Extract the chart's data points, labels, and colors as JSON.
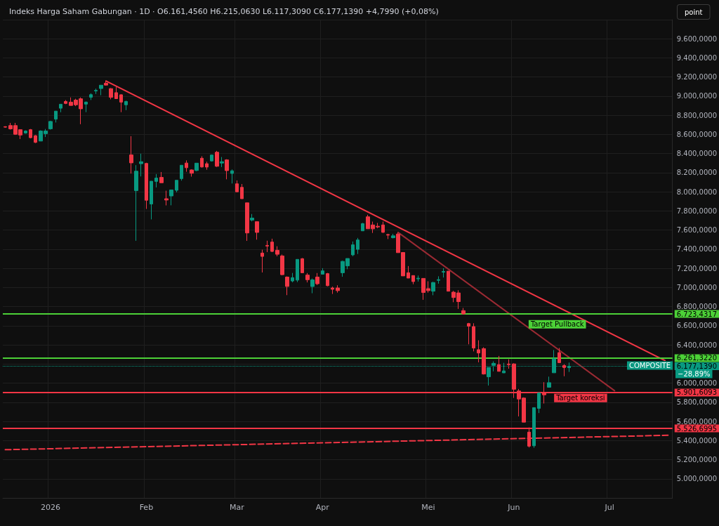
{
  "chart_data": {
    "type": "candlestick",
    "title": "Indeks Harga Saham Gabungan · 1D · O6.161,4560 H6.215,0630 L6.117,3090 C6.177,1390 +4,7990 (+0,08%)",
    "categories": [
      null,
      null,
      null,
      null,
      null,
      null,
      null,
      null,
      null,
      "2026",
      null,
      null,
      null,
      null,
      null,
      null,
      null,
      null,
      null,
      null,
      null,
      null,
      null,
      null,
      null,
      null,
      null,
      null,
      "Feb",
      null,
      null,
      null,
      null,
      null,
      null,
      null,
      null,
      null,
      null,
      null,
      null,
      null,
      null,
      null,
      null,
      null,
      "Mar",
      null,
      null,
      null,
      null,
      null,
      null,
      null,
      null,
      null,
      null,
      null,
      null,
      null,
      null,
      null,
      null,
      "Apr",
      null,
      null,
      null,
      null,
      null,
      null,
      null,
      null,
      null,
      null,
      null,
      null,
      null,
      null,
      null,
      null,
      null,
      null,
      null,
      null,
      "Mei",
      null,
      null,
      null,
      null,
      null,
      null,
      null,
      null,
      null,
      null,
      null,
      null,
      null,
      null,
      null,
      null,
      "Jun",
      null,
      null,
      null,
      null,
      null,
      null,
      null,
      null,
      null,
      null,
      null,
      null,
      null,
      null,
      null,
      null,
      null,
      null,
      "Jul",
      null,
      null,
      null,
      null,
      null,
      null,
      null,
      null,
      null,
      null,
      null,
      null
    ],
    "ohlc": [
      [
        8681,
        8686,
        8671,
        8676
      ],
      [
        8693,
        8721,
        8651,
        8658
      ],
      [
        8693,
        8721,
        8595,
        8602
      ],
      [
        8650,
        8650,
        8552,
        8594
      ],
      [
        8615,
        8643,
        8608,
        8636
      ],
      [
        8650,
        8657,
        8559,
        8566
      ],
      [
        8587,
        8594,
        8510,
        8517
      ],
      [
        8531,
        8643,
        8531,
        8636
      ],
      [
        8608,
        8657,
        8573,
        8636
      ],
      [
        8659,
        8743,
        8650,
        8736
      ],
      [
        8760,
        8844,
        8725,
        8844
      ],
      [
        8874,
        8916,
        8832,
        8916
      ],
      [
        8945,
        8959,
        8917,
        8924
      ],
      [
        8938,
        8987,
        8903,
        8903
      ],
      [
        8959,
        8973,
        8896,
        8910
      ],
      [
        8973,
        8987,
        8707,
        8868
      ],
      [
        8917,
        8945,
        8833,
        8938
      ],
      [
        8988,
        9030,
        8960,
        9016
      ],
      [
        9054,
        9079,
        9023,
        9061
      ],
      [
        9080,
        9115,
        9010,
        9115
      ],
      [
        9136,
        9157,
        9111,
        9116
      ],
      [
        9079,
        9085,
        8967,
        8988
      ],
      [
        9037,
        9099,
        8974,
        8974
      ],
      [
        9015,
        9020,
        8833,
        8938
      ],
      [
        8910,
        8953,
        8854,
        8945
      ],
      [
        8386,
        8582,
        8191,
        8303
      ],
      [
        8013,
        8279,
        7488,
        8216
      ],
      [
        8294,
        8399,
        8161,
        8315
      ],
      [
        8297,
        8304,
        7821,
        7912
      ],
      [
        7873,
        8111,
        7712,
        8111
      ],
      [
        8109,
        8186,
        8046,
        8144
      ],
      [
        8151,
        8207,
        8095,
        8095
      ],
      [
        7928,
        8012,
        7858,
        7914
      ],
      [
        7957,
        8020,
        7859,
        8020
      ],
      [
        8016,
        8121,
        7995,
        8121
      ],
      [
        8138,
        8278,
        8117,
        8278
      ],
      [
        8301,
        8329,
        8210,
        8252
      ],
      [
        8229,
        8236,
        8159,
        8194
      ],
      [
        8223,
        8300,
        8216,
        8300
      ],
      [
        8351,
        8372,
        8253,
        8260
      ],
      [
        8294,
        8315,
        8231,
        8259
      ],
      [
        8323,
        8390,
        8316,
        8385
      ],
      [
        8414,
        8428,
        8260,
        8267
      ],
      [
        8301,
        8364,
        8259,
        8315
      ],
      [
        8334,
        8341,
        8131,
        8222
      ],
      [
        8192,
        8234,
        8087,
        8220
      ],
      [
        8084,
        8119,
        8000,
        8000
      ],
      [
        8047,
        8082,
        7928,
        7928
      ],
      [
        7885,
        7885,
        7487,
        7570
      ],
      [
        7705,
        7768,
        7691,
        7726
      ],
      [
        7688,
        7688,
        7500,
        7576
      ],
      [
        7360,
        7395,
        7157,
        7325
      ],
      [
        7440,
        7489,
        7370,
        7433
      ],
      [
        7475,
        7510,
        7370,
        7377
      ],
      [
        7389,
        7431,
        7326,
        7347
      ],
      [
        7330,
        7344,
        7127,
        7134
      ],
      [
        7109,
        7116,
        6920,
        7011
      ],
      [
        7068,
        7152,
        7054,
        7103
      ],
      [
        7077,
        7294,
        7056,
        7294
      ],
      [
        7301,
        7308,
        7154,
        7154
      ],
      [
        7130,
        7151,
        7053,
        7081
      ],
      [
        7010,
        7094,
        6940,
        7080
      ],
      [
        7109,
        7151,
        7025,
        7039
      ],
      [
        7139,
        7202,
        7139,
        7174
      ],
      [
        7145,
        7152,
        7012,
        7019
      ],
      [
        6995,
        7009,
        6932,
        6981
      ],
      [
        6995,
        7023,
        6946,
        6967
      ],
      [
        7154,
        7280,
        7112,
        7273
      ],
      [
        7226,
        7303,
        7191,
        7303
      ],
      [
        7341,
        7481,
        7327,
        7446
      ],
      [
        7399,
        7518,
        7350,
        7497
      ],
      [
        7592,
        7675,
        7592,
        7668
      ],
      [
        7739,
        7760,
        7614,
        7614
      ],
      [
        7654,
        7689,
        7570,
        7613
      ],
      [
        7640,
        7675,
        7619,
        7633
      ],
      [
        7654,
        7689,
        7570,
        7577
      ],
      [
        7554,
        7561,
        7506,
        7547
      ],
      [
        7520,
        7561,
        7513,
        7540
      ],
      [
        7559,
        7573,
        7364,
        7364
      ],
      [
        7366,
        7370,
        7121,
        7121
      ],
      [
        7154,
        7224,
        7098,
        7098
      ],
      [
        7125,
        7125,
        7034,
        7062
      ],
      [
        7090,
        7125,
        7062,
        7097
      ],
      [
        7095,
        7095,
        6871,
        6948
      ],
      [
        6988,
        7065,
        6946,
        6967
      ],
      [
        6961,
        7059,
        6919,
        7052
      ],
      [
        7075,
        7117,
        7040,
        7082
      ],
      [
        7160,
        7202,
        7104,
        7167
      ],
      [
        7171,
        7171,
        6961,
        6961
      ],
      [
        6951,
        6965,
        6846,
        6895
      ],
      [
        6943,
        6971,
        6776,
        6852
      ],
      [
        6758,
        6786,
        6716,
        6724
      ],
      [
        6623,
        6630,
        6406,
        6595
      ],
      [
        6591,
        6626,
        6332,
        6367
      ],
      [
        6350,
        6448,
        6217,
        6315
      ],
      [
        6361,
        6375,
        6090,
        6095
      ],
      [
        6066,
        6164,
        5975,
        6164
      ],
      [
        6186,
        6228,
        6123,
        6207
      ],
      [
        6193,
        6284,
        6123,
        6123
      ],
      [
        6107,
        6212,
        6107,
        6128
      ],
      [
        6200,
        6249,
        6151,
        6193
      ],
      [
        6201,
        6208,
        5845,
        5936
      ],
      [
        5918,
        5939,
        5652,
        5834
      ],
      [
        5844,
        5851,
        5592,
        5592
      ],
      [
        5488,
        5537,
        5327,
        5341
      ],
      [
        5345,
        5744,
        5324,
        5744
      ],
      [
        5736,
        5904,
        5687,
        5897
      ],
      [
        5899,
        6010,
        5787,
        5878
      ],
      [
        5957,
        6068,
        5957,
        6005
      ],
      [
        6108,
        6346,
        6108,
        6255
      ],
      [
        6319,
        6368,
        6214,
        6214
      ],
      [
        6184,
        6198,
        6072,
        6163
      ],
      [
        6161.456,
        6215.063,
        6117.309,
        6177.139
      ],
      null,
      null,
      null,
      null,
      null,
      null,
      null,
      null,
      null,
      null,
      null,
      null,
      null,
      null,
      null,
      null,
      null,
      null,
      null,
      null
    ],
    "colors": [
      "#f23645",
      "#f23645",
      "#f23645",
      "#f23645",
      "#089981",
      "#f23645",
      "#f23645",
      "#089981",
      "#089981",
      "#089981",
      "#089981",
      "#089981",
      "#f23645",
      "#f23645",
      "#f23645",
      "#f23645",
      "#089981",
      "#089981",
      "#089981",
      "#089981",
      "#f23645",
      "#f23645",
      "#f23645",
      "#f23645",
      "#089981",
      "#f23645",
      "#089981",
      "#089981",
      "#f23645",
      "#089981",
      "#089981",
      "#f23645",
      "#f23645",
      "#089981",
      "#089981",
      "#089981",
      "#f23645",
      "#f23645",
      "#089981",
      "#f23645",
      "#f23645",
      "#089981",
      "#f23645",
      "#089981",
      "#f23645",
      "#089981",
      "#f23645",
      "#f23645",
      "#f23645",
      "#089981",
      "#f23645",
      "#f23645",
      "#f23645",
      "#f23645",
      "#f23645",
      "#f23645",
      "#f23645",
      "#089981",
      "#089981",
      "#f23645",
      "#f23645",
      "#089981",
      "#f23645",
      "#089981",
      "#f23645",
      "#f23645",
      "#f23645",
      "#089981",
      "#089981",
      "#089981",
      "#089981",
      "#089981",
      "#f23645",
      "#f23645",
      "#f23645",
      "#f23645",
      "#f23645",
      "#089981",
      "#f23645",
      "#f23645",
      "#f23645",
      "#f23645",
      "#089981",
      "#f23645",
      "#f23645",
      "#089981",
      "#089981",
      "#089981",
      "#f23645",
      "#f23645",
      "#f23645",
      "#f23645",
      "#f23645",
      "#f23645",
      "#f23645",
      "#f23645",
      "#089981",
      "#089981",
      "#f23645",
      "#089981",
      "#f23645",
      "#f23645",
      "#f23645",
      "#f23645",
      "#f23645",
      "#089981",
      "#089981",
      "#f23645",
      "#089981",
      "#089981",
      "#f23645",
      "#f23645",
      "#089981",
      null,
      null,
      null,
      null,
      null,
      null,
      null,
      null,
      null,
      null,
      null,
      null,
      null,
      null,
      null,
      null,
      null,
      null,
      null,
      null
    ],
    "series": [
      {
        "type": "line",
        "color": "#f23645",
        "line_style": "solid",
        "values": [
          null,
          null,
          null,
          null,
          null,
          null,
          null,
          null,
          null,
          null,
          null,
          null,
          null,
          null,
          null,
          null,
          null,
          null,
          null,
          null,
          9159,
          null,
          null,
          null,
          null,
          null,
          null,
          null,
          null,
          null,
          null,
          null,
          null,
          null,
          null,
          null,
          null,
          null,
          null,
          null,
          null,
          null,
          null,
          null,
          null,
          null,
          null,
          null,
          null,
          null,
          null,
          null,
          null,
          null,
          null,
          null,
          null,
          null,
          null,
          null,
          null,
          null,
          null,
          null,
          null,
          null,
          null,
          null,
          null,
          null,
          null,
          null,
          null,
          null,
          null,
          null,
          null,
          null,
          null,
          null,
          null,
          null,
          null,
          null,
          null,
          null,
          null,
          null,
          null,
          null,
          null,
          null,
          null,
          null,
          null,
          null,
          null,
          null,
          null,
          null,
          null,
          null,
          null,
          null,
          null,
          null,
          null,
          null,
          null,
          null,
          null,
          null,
          null,
          null,
          null,
          null,
          null,
          null,
          null,
          null,
          null,
          null,
          null,
          null,
          null,
          null,
          null,
          null,
          null,
          null,
          null,
          6236,
          null
        ]
      },
      {
        "type": "line",
        "color": "#9b2a33",
        "line_style": "solid",
        "values": [
          null,
          null,
          null,
          null,
          null,
          null,
          null,
          null,
          null,
          null,
          null,
          null,
          null,
          null,
          null,
          null,
          null,
          null,
          null,
          null,
          null,
          null,
          null,
          null,
          null,
          null,
          null,
          null,
          null,
          null,
          null,
          null,
          null,
          null,
          null,
          null,
          null,
          null,
          null,
          null,
          null,
          null,
          null,
          null,
          null,
          null,
          null,
          null,
          null,
          null,
          null,
          null,
          null,
          null,
          null,
          null,
          null,
          null,
          null,
          null,
          null,
          null,
          null,
          null,
          null,
          null,
          null,
          null,
          null,
          null,
          null,
          null,
          null,
          null,
          null,
          null,
          null,
          null,
          7576,
          null,
          null,
          null,
          null,
          null,
          null,
          null,
          null,
          null,
          null,
          null,
          null,
          null,
          null,
          null,
          null,
          null,
          null,
          null,
          null,
          null,
          null,
          null,
          null,
          null,
          null,
          null,
          null,
          null,
          null,
          null,
          null,
          null,
          null,
          null,
          null,
          null,
          null,
          null,
          null,
          null,
          null,
          5921,
          null,
          null,
          null,
          null,
          null,
          null,
          null,
          null,
          null,
          null,
          null
        ]
      },
      {
        "type": "line",
        "color": "#f23645",
        "line_style": "dashed",
        "values": [
          5304,
          null,
          null,
          null,
          null,
          null,
          null,
          null,
          null,
          null,
          null,
          null,
          null,
          null,
          null,
          null,
          null,
          null,
          null,
          null,
          null,
          null,
          null,
          null,
          null,
          null,
          null,
          null,
          null,
          null,
          null,
          null,
          null,
          null,
          null,
          null,
          null,
          null,
          null,
          null,
          null,
          null,
          null,
          null,
          null,
          null,
          null,
          null,
          null,
          null,
          null,
          null,
          null,
          null,
          null,
          null,
          null,
          null,
          null,
          null,
          null,
          null,
          null,
          null,
          null,
          null,
          null,
          null,
          null,
          null,
          null,
          null,
          null,
          null,
          null,
          null,
          null,
          null,
          null,
          null,
          null,
          null,
          null,
          null,
          null,
          null,
          null,
          null,
          null,
          null,
          null,
          null,
          null,
          null,
          null,
          null,
          null,
          null,
          null,
          null,
          null,
          null,
          null,
          null,
          null,
          null,
          null,
          null,
          null,
          null,
          null,
          null,
          null,
          null,
          null,
          null,
          null,
          null,
          null,
          null,
          null,
          null,
          null,
          null,
          null,
          null,
          null,
          null,
          null,
          null,
          null,
          null,
          5455
        ]
      }
    ],
    "ylim": [
      4800,
      9800
    ],
    "yticks": [
      {
        "value": 5000,
        "label": "5.000,0000"
      },
      {
        "value": 5200,
        "label": "5.200,0000"
      },
      {
        "value": 5400,
        "label": "5.400,0000"
      },
      {
        "value": 5600,
        "label": "5.600,0000"
      },
      {
        "value": 5800,
        "label": "5.800,0000"
      },
      {
        "value": 6000,
        "label": "6.000,0000"
      },
      {
        "value": 6200,
        "label": null
      },
      {
        "value": 6400,
        "label": "6.400,0000"
      },
      {
        "value": 6600,
        "label": "6.600,0000"
      },
      {
        "value": 6800,
        "label": "6.800,0000"
      },
      {
        "value": 7000,
        "label": "7.000,0000"
      },
      {
        "value": 7200,
        "label": "7.200,0000"
      },
      {
        "value": 7400,
        "label": "7.400,0000"
      },
      {
        "value": 7600,
        "label": "7.600,0000"
      },
      {
        "value": 7800,
        "label": "7.800,0000"
      },
      {
        "value": 8000,
        "label": "8.000,0000"
      },
      {
        "value": 8200,
        "label": "8.200,0000"
      },
      {
        "value": 8400,
        "label": "8.400,0000"
      },
      {
        "value": 8600,
        "label": "8.600,0000"
      },
      {
        "value": 8800,
        "label": "8.800,0000"
      },
      {
        "value": 9000,
        "label": "9.000,0000"
      },
      {
        "value": 9200,
        "label": "9.200,0000"
      },
      {
        "value": 9400,
        "label": "9.400,0000"
      },
      {
        "value": 9600,
        "label": "9.600,0000"
      }
    ],
    "ref_lines": [
      {
        "axis": "y",
        "value": 6723.4317,
        "label": "6.723,4317",
        "color": "#4cd137",
        "line_style": "solid"
      },
      {
        "axis": "y",
        "value": 6261.322,
        "label": "6.261,3220",
        "color": "#4cd137",
        "line_style": "solid"
      },
      {
        "axis": "y",
        "value": 6177.139,
        "label": "6.177,1390",
        "color": "#089981",
        "line_style": "dotted"
      },
      {
        "axis": "y",
        "value": 5901.6093,
        "label": "5.901,6093",
        "color": "#f23645",
        "line_style": "solid"
      },
      {
        "axis": "y",
        "value": 5526.6995,
        "label": "5.526,6995",
        "color": "#f23645",
        "line_style": "solid"
      }
    ],
    "annotations": [
      "Target Pullback",
      "Target koreksi",
      "COMPOSITE",
      "−28,89%",
      "point"
    ],
    "grid": true
  }
}
